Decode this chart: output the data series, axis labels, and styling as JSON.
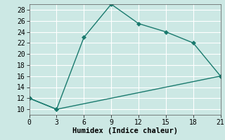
{
  "xlabel": "Humidex (Indice chaleur)",
  "ylabel": "",
  "line1_x": [
    0,
    3,
    6,
    9,
    12,
    15,
    18,
    21
  ],
  "line1_y": [
    12,
    10,
    23,
    29,
    25.5,
    24,
    22,
    16
  ],
  "line2_x": [
    0,
    3,
    21
  ],
  "line2_y": [
    12,
    10,
    16
  ],
  "line_color": "#1a7a6e",
  "bg_color": "#cce8e4",
  "grid_color": "#ffffff",
  "xlim": [
    0,
    21
  ],
  "ylim": [
    9,
    29
  ],
  "xticks": [
    0,
    3,
    6,
    9,
    12,
    15,
    18,
    21
  ],
  "yticks": [
    10,
    12,
    14,
    16,
    18,
    20,
    22,
    24,
    26,
    28
  ],
  "marker": "D",
  "markersize": 3,
  "linewidth": 1.0,
  "xlabel_fontsize": 7.5,
  "tick_fontsize": 7
}
